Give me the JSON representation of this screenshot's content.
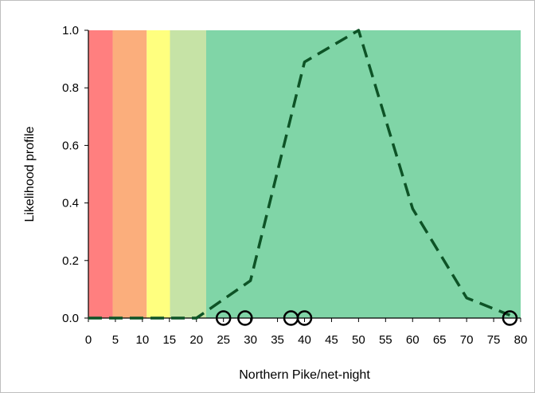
{
  "chart_data": {
    "type": "line",
    "title": "",
    "xlabel": "Northern Pike/net-night",
    "ylabel": "Likelihood profile",
    "xlim": [
      0,
      80
    ],
    "ylim": [
      0,
      1.0
    ],
    "x_ticks": [
      0,
      5,
      10,
      15,
      20,
      25,
      30,
      35,
      40,
      45,
      50,
      55,
      60,
      65,
      70,
      75,
      80
    ],
    "y_ticks": [
      0.0,
      0.2,
      0.4,
      0.6,
      0.8,
      1.0
    ],
    "y_tick_labels": [
      "0.0",
      "0.2",
      "0.4",
      "0.6",
      "0.8",
      "1.0"
    ],
    "grid": false,
    "background_bands": [
      {
        "x_start": 0,
        "x_end": 4.5,
        "color": "#ff7f7f"
      },
      {
        "x_start": 4.5,
        "x_end": 10.8,
        "color": "#fbae7c"
      },
      {
        "x_start": 10.8,
        "x_end": 15.1,
        "color": "#ffff7f"
      },
      {
        "x_start": 15.1,
        "x_end": 21.8,
        "color": "#c6e3a6"
      },
      {
        "x_start": 21.8,
        "x_end": 80,
        "color": "#80d5a7"
      }
    ],
    "series": [
      {
        "style": "dashed",
        "color": "#0d5326",
        "x": [
          0,
          20,
          30,
          40,
          50,
          60,
          70,
          78
        ],
        "y": [
          0.0,
          0.0,
          0.13,
          0.89,
          1.0,
          0.38,
          0.07,
          0.01
        ]
      }
    ],
    "observations": {
      "marker": "open-circle",
      "color": "#000000",
      "x": [
        25,
        29,
        37.5,
        40,
        78
      ],
      "y": [
        0,
        0,
        0,
        0,
        0
      ]
    }
  }
}
